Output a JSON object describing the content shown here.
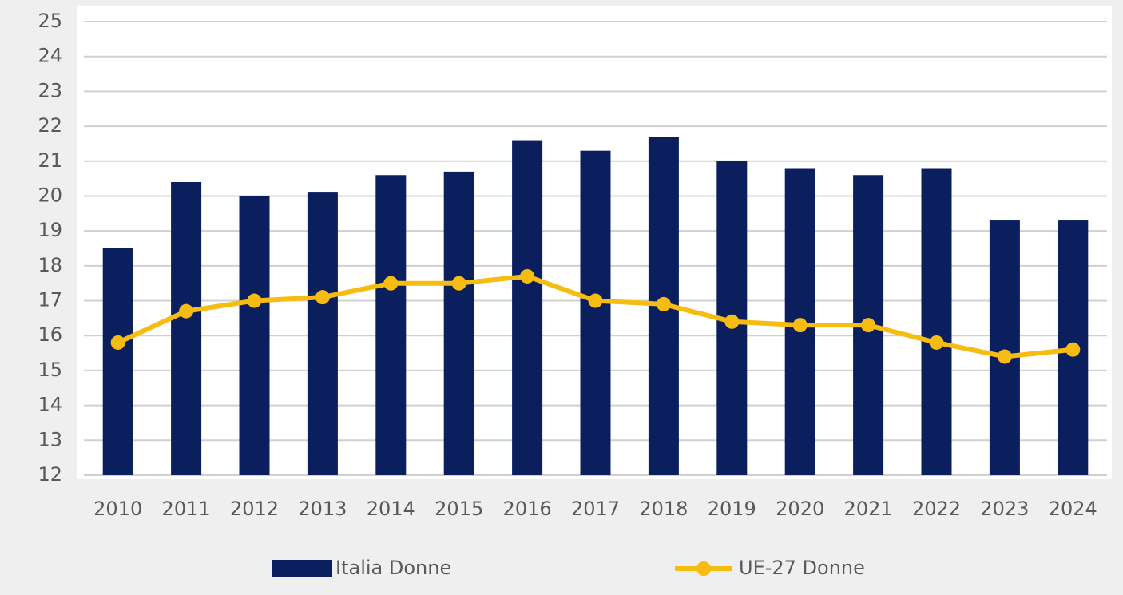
{
  "chart_data": {
    "type": "bar",
    "categories": [
      "2010",
      "2011",
      "2012",
      "2013",
      "2014",
      "2015",
      "2016",
      "2017",
      "2018",
      "2019",
      "2020",
      "2021",
      "2022",
      "2023",
      "2024"
    ],
    "series": [
      {
        "name": "Italia Donne",
        "type": "bar",
        "color": "#0b1f5e",
        "values": [
          18.5,
          20.4,
          20.0,
          20.1,
          20.6,
          20.7,
          21.6,
          21.3,
          21.7,
          21.0,
          20.8,
          20.6,
          20.8,
          19.3,
          19.3
        ]
      },
      {
        "name": "UE-27 Donne",
        "type": "line",
        "color": "#f7bc12",
        "values": [
          15.8,
          16.7,
          17.0,
          17.1,
          17.5,
          17.5,
          17.7,
          17.0,
          16.9,
          16.4,
          16.3,
          16.3,
          15.8,
          15.4,
          15.6
        ]
      }
    ],
    "ylim": [
      12,
      25
    ],
    "yticks": [
      12,
      13,
      14,
      15,
      16,
      17,
      18,
      19,
      20,
      21,
      22,
      23,
      24,
      25
    ],
    "grid": true,
    "legend": "bottom"
  }
}
